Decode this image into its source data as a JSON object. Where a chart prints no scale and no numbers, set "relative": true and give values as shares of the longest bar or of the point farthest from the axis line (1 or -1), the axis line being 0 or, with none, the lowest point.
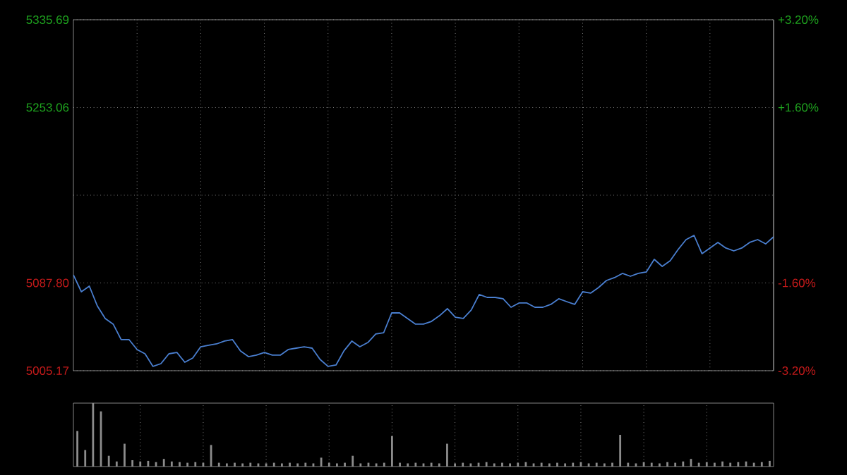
{
  "chart_data": [
    {
      "type": "line",
      "color": "#4a7fd0",
      "marker": "none",
      "line_style": "solid",
      "grid": true,
      "tick_labels": "y",
      "categories": [
        null,
        null,
        null,
        null,
        null,
        null,
        null,
        null,
        null,
        null,
        null,
        null,
        null,
        null,
        null,
        null,
        null,
        null,
        null,
        null,
        null,
        null,
        null,
        null,
        null,
        null,
        null,
        null,
        null,
        null,
        null,
        null,
        null,
        null,
        null,
        null,
        null,
        null,
        null,
        null,
        null,
        null,
        null,
        null,
        null,
        null,
        null,
        null,
        null,
        null,
        null,
        null,
        null,
        null,
        null,
        null,
        null,
        null,
        null,
        null,
        null,
        null,
        null,
        null,
        null,
        null,
        null,
        null,
        null,
        null,
        null,
        null,
        null,
        null,
        null,
        null,
        null,
        null,
        null,
        null,
        null,
        null,
        null,
        null,
        null,
        null,
        null,
        null,
        null
      ],
      "values": [
        5095.4,
        5079.5,
        5084.8,
        5066.2,
        5054.3,
        5049.0,
        5034.4,
        5034.4,
        5025.1,
        5021.1,
        5009.2,
        5011.8,
        5021.1,
        5022.4,
        5013.1,
        5017.1,
        5027.7,
        5029.1,
        5030.4,
        5033.1,
        5034.4,
        5023.8,
        5018.4,
        5019.8,
        5022.4,
        5019.8,
        5019.8,
        5025.1,
        5026.4,
        5027.7,
        5026.4,
        5015.8,
        5009.2,
        5010.5,
        5023.8,
        5033.1,
        5027.7,
        5031.7,
        5039.7,
        5041.0,
        5059.6,
        5059.6,
        5054.3,
        5049.0,
        5049.0,
        5051.6,
        5056.9,
        5063.6,
        5055.6,
        5054.3,
        5062.3,
        5076.9,
        5074.2,
        5074.2,
        5072.9,
        5064.9,
        5068.9,
        5068.9,
        5064.9,
        5064.9,
        5067.6,
        5072.9,
        5070.2,
        5067.6,
        5079.5,
        5078.2,
        5083.5,
        5090.1,
        5092.8,
        5096.8,
        5094.1,
        5096.8,
        5098.1,
        5110.0,
        5103.4,
        5108.7,
        5119.3,
        5128.6,
        5132.6,
        5115.4,
        5120.7,
        5126.0,
        5120.7,
        5118.0,
        5120.7,
        5126.0,
        5128.6,
        5124.6,
        5131.3
      ],
      "ylim": [
        5005.17,
        5335.69
      ],
      "yticks": [
        5005.17,
        {
          "value": 5087.8,
          "label": "5087.80"
        },
        {
          "value": 5170.43,
          "label": null
        },
        5253.06,
        5335.69
      ],
      "y2lim": [
        -3.2,
        3.2
      ],
      "y2ticks": [
        {
          "value": -3.2,
          "label": "-3.20%"
        },
        {
          "value": -1.6,
          "label": "-1.60%"
        },
        {
          "value": 1.6,
          "label": "+1.60%"
        },
        {
          "value": 3.2,
          "label": "+3.20%"
        }
      ]
    },
    {
      "type": "bar",
      "relative": true,
      "color": "#8c8c8c",
      "grid": "x",
      "tick_labels": false,
      "categories": [
        null,
        null,
        null,
        null,
        null,
        null,
        null,
        null,
        null,
        null,
        null,
        null,
        null,
        null,
        null,
        null,
        null,
        null,
        null,
        null,
        null,
        null,
        null,
        null,
        null,
        null,
        null,
        null,
        null,
        null,
        null,
        null,
        null,
        null,
        null,
        null,
        null,
        null,
        null,
        null,
        null,
        null,
        null,
        null,
        null,
        null,
        null,
        null,
        null,
        null,
        null,
        null,
        null,
        null,
        null,
        null,
        null,
        null,
        null,
        null,
        null,
        null,
        null,
        null,
        null,
        null,
        null,
        null,
        null,
        null,
        null,
        null,
        null,
        null,
        null,
        null,
        null,
        null,
        null,
        null,
        null,
        null,
        null,
        null,
        null,
        null,
        null,
        null,
        null
      ],
      "values": [
        0.56,
        0.26,
        1.0,
        0.87,
        0.17,
        0.08,
        0.36,
        0.1,
        0.08,
        0.09,
        0.07,
        0.12,
        0.08,
        0.07,
        0.06,
        0.07,
        0.06,
        0.34,
        0.06,
        0.05,
        0.06,
        0.05,
        0.06,
        0.05,
        0.05,
        0.06,
        0.05,
        0.06,
        0.05,
        0.06,
        0.05,
        0.14,
        0.06,
        0.05,
        0.06,
        0.17,
        0.05,
        0.06,
        0.05,
        0.06,
        0.48,
        0.06,
        0.05,
        0.06,
        0.05,
        0.06,
        0.05,
        0.36,
        0.05,
        0.06,
        0.05,
        0.06,
        0.07,
        0.05,
        0.06,
        0.05,
        0.06,
        0.07,
        0.05,
        0.06,
        0.05,
        0.06,
        0.05,
        0.06,
        0.07,
        0.05,
        0.06,
        0.05,
        0.06,
        0.5,
        0.06,
        0.05,
        0.07,
        0.06,
        0.05,
        0.07,
        0.06,
        0.08,
        0.12,
        0.06,
        0.07,
        0.06,
        0.08,
        0.06,
        0.07,
        0.08,
        0.06,
        0.07,
        0.09
      ]
    }
  ]
}
